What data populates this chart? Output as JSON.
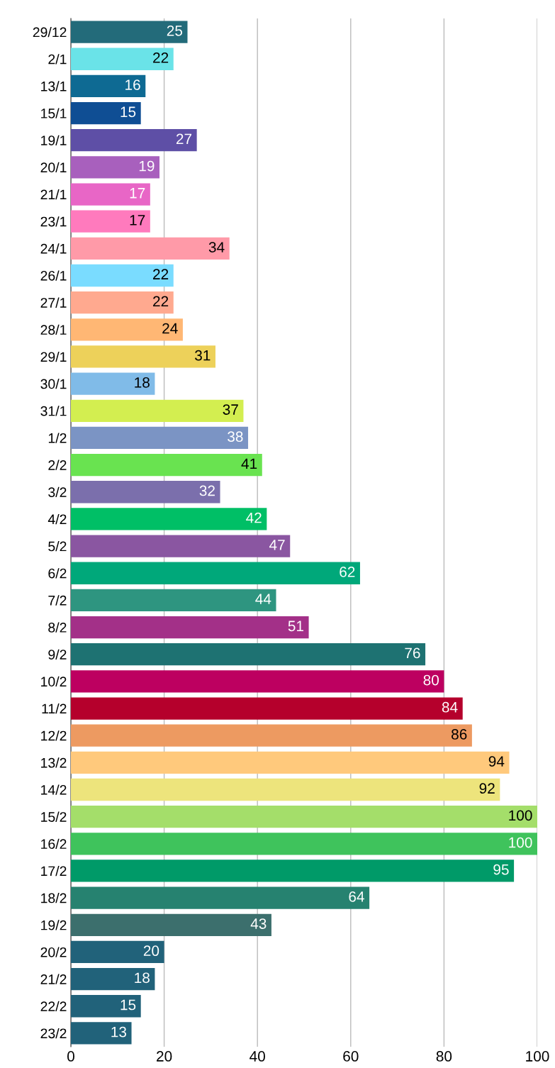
{
  "chart_data": {
    "type": "bar",
    "orientation": "horizontal",
    "categories": [
      "29/12",
      "2/1",
      "13/1",
      "15/1",
      "19/1",
      "20/1",
      "21/1",
      "23/1",
      "24/1",
      "26/1",
      "27/1",
      "28/1",
      "29/1",
      "30/1",
      "31/1",
      "1/2",
      "2/2",
      "3/2",
      "4/2",
      "5/2",
      "6/2",
      "7/2",
      "8/2",
      "9/2",
      "10/2",
      "11/2",
      "12/2",
      "13/2",
      "14/2",
      "15/2",
      "16/2",
      "17/2",
      "18/2",
      "19/2",
      "20/2",
      "21/2",
      "22/2",
      "23/2"
    ],
    "values": [
      25,
      22,
      16,
      15,
      27,
      19,
      17,
      17,
      34,
      22,
      22,
      24,
      31,
      18,
      37,
      38,
      41,
      32,
      42,
      47,
      62,
      44,
      51,
      76,
      80,
      84,
      86,
      94,
      92,
      100,
      100,
      95,
      64,
      43,
      20,
      18,
      15,
      13
    ],
    "colors": [
      "#236b7a",
      "#6ae3e8",
      "#0e6a93",
      "#0f4e94",
      "#5e4fa6",
      "#a860bd",
      "#e866c6",
      "#ff7abd",
      "#ff9aa8",
      "#7adcff",
      "#ffa98f",
      "#ffb774",
      "#edd15a",
      "#80bbe8",
      "#d3ee50",
      "#7b94c4",
      "#69e350",
      "#7b6fac",
      "#00bf66",
      "#8a56a1",
      "#00a87a",
      "#2e9580",
      "#a33088",
      "#1e7272",
      "#bd0060",
      "#b5002c",
      "#ed9a61",
      "#ffc97c",
      "#ede47c",
      "#a4de6a",
      "#3fc35c",
      "#009a68",
      "#268270",
      "#3c6f6d",
      "#21627a",
      "#21627a",
      "#21627a",
      "#21627a"
    ],
    "xlim": [
      0,
      100
    ],
    "xticks": [
      0,
      20,
      40,
      60,
      80,
      100
    ],
    "grid": "x",
    "data_labels": true
  }
}
